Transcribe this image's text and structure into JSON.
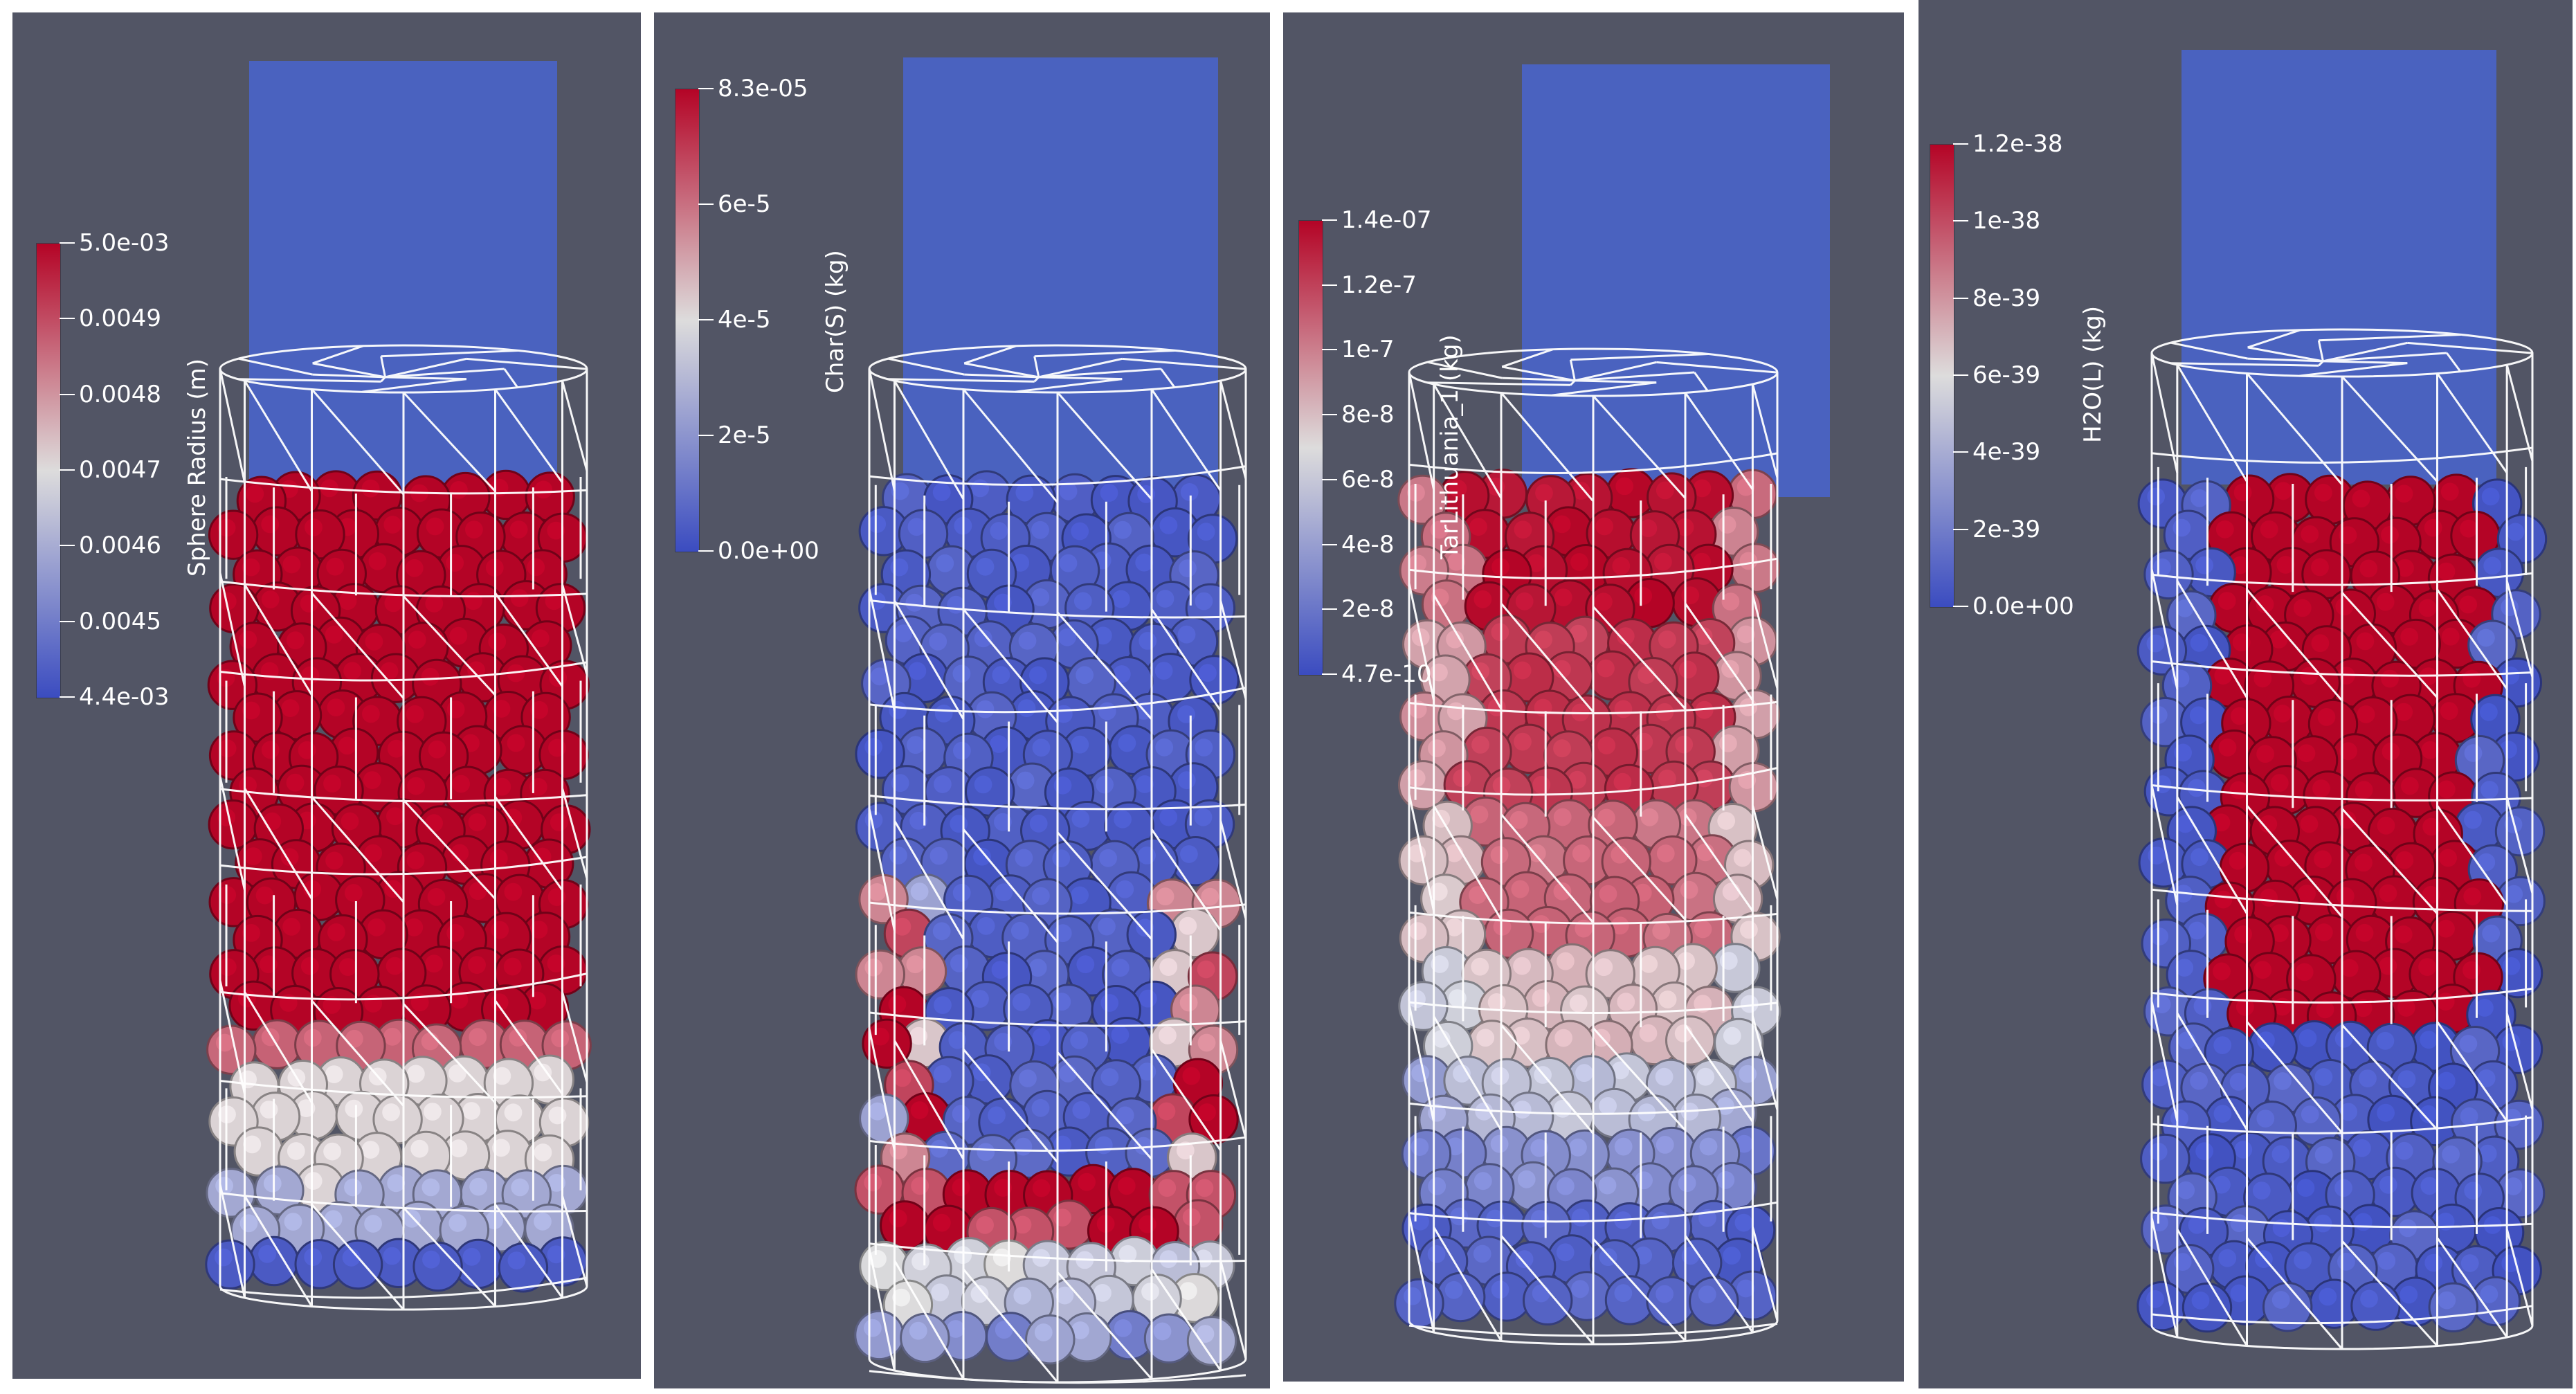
{
  "colors": {
    "background": "#525565",
    "low": "#3b4cc0",
    "mid": "#dddcdc",
    "high": "#b40426",
    "mesh": "#ffffff",
    "fluid": "#4a63c4"
  },
  "panels": [
    {
      "id": "sphere-radius",
      "colorbar": {
        "title": "Sphere Radius (m)",
        "labels": [
          "5.0e-03",
          "0.0049",
          "0.0048",
          "0.0047",
          "0.0046",
          "0.0045",
          "4.4e-03"
        ]
      },
      "particle_field": "radius"
    },
    {
      "id": "char",
      "colorbar": {
        "title": "Char(S) (kg)",
        "labels": [
          "8.3e-05",
          "6e-5",
          "4e-5",
          "2e-5",
          "0.0e+00"
        ]
      },
      "particle_field": "char"
    },
    {
      "id": "tar",
      "colorbar": {
        "title": "TarLithuania_1 (kg)",
        "labels": [
          "1.4e-07",
          "1.2e-7",
          "1e-7",
          "8e-8",
          "6e-8",
          "4e-8",
          "2e-8",
          "4.7e-10"
        ]
      },
      "particle_field": "tar"
    },
    {
      "id": "water",
      "colorbar": {
        "title": "H2O(L) (kg)",
        "labels": [
          "1.2e-38",
          "1e-38",
          "8e-39",
          "6e-39",
          "4e-39",
          "2e-39",
          "0.0e+00"
        ]
      },
      "particle_field": "water"
    }
  ]
}
